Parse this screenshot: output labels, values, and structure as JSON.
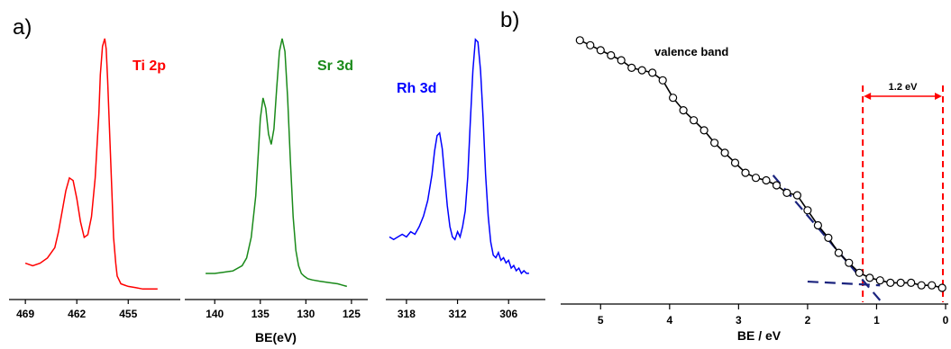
{
  "panel_a_label": "a)",
  "panel_b_label": "b)",
  "colors": {
    "ti": "#ff0000",
    "sr": "#1a8a1a",
    "rh": "#0000ff",
    "vb": "#000000",
    "fit": "#1a237e",
    "marker": "#ff0000"
  },
  "chart_data": [
    {
      "type": "line",
      "panel": "a",
      "xlabel": "",
      "reversed_x": true,
      "xlim": [
        470,
        450
      ],
      "ylim": [
        0,
        1
      ],
      "xticks": [
        469,
        462,
        455
      ],
      "series": [
        {
          "name": "Ti 2p",
          "x": [
            469,
            468,
            467,
            466,
            465,
            464.5,
            464,
            463.5,
            463,
            462.5,
            462,
            461.5,
            461,
            460.5,
            460,
            459.5,
            459,
            458.8,
            458.5,
            458.2,
            458,
            457.8,
            457.5,
            457.2,
            457,
            456.7,
            456.5,
            456,
            455.5,
            455,
            454,
            453,
            452,
            451
          ],
          "y": [
            0.12,
            0.11,
            0.12,
            0.14,
            0.18,
            0.24,
            0.32,
            0.4,
            0.45,
            0.44,
            0.37,
            0.28,
            0.22,
            0.23,
            0.3,
            0.45,
            0.7,
            0.85,
            0.96,
            0.99,
            0.95,
            0.83,
            0.6,
            0.38,
            0.22,
            0.12,
            0.07,
            0.04,
            0.035,
            0.03,
            0.025,
            0.02,
            0.02,
            0.02
          ]
        }
      ]
    },
    {
      "type": "line",
      "panel": "a",
      "xlabel": "BE(eV)",
      "reversed_x": true,
      "xlim": [
        142,
        124
      ],
      "ylim": [
        0,
        1
      ],
      "xticks": [
        140,
        135,
        130,
        125
      ],
      "series": [
        {
          "name": "Sr 3d",
          "x": [
            141,
            140,
            139,
            138,
            137,
            136.5,
            136,
            135.5,
            135.2,
            135,
            134.7,
            134.4,
            134.1,
            133.8,
            133.5,
            133.2,
            132.9,
            132.6,
            132.3,
            132,
            131.7,
            131.4,
            131.1,
            130.8,
            130.5,
            130.2,
            129.8,
            129.3,
            128.5,
            127.5,
            126.5,
            125.5
          ],
          "y": [
            0.08,
            0.08,
            0.085,
            0.09,
            0.11,
            0.14,
            0.22,
            0.38,
            0.56,
            0.68,
            0.76,
            0.72,
            0.62,
            0.58,
            0.64,
            0.8,
            0.94,
            0.99,
            0.94,
            0.76,
            0.52,
            0.3,
            0.17,
            0.11,
            0.08,
            0.07,
            0.06,
            0.055,
            0.05,
            0.045,
            0.04,
            0.03
          ]
        }
      ]
    },
    {
      "type": "line",
      "panel": "a",
      "xlabel": "",
      "reversed_x": true,
      "xlim": [
        320,
        302
      ],
      "ylim": [
        0,
        1
      ],
      "xticks": [
        318,
        312,
        306
      ],
      "series": [
        {
          "name": "Rh 3d",
          "x": [
            320,
            319.5,
            319,
            318.5,
            318,
            317.5,
            317,
            316.5,
            316,
            315.5,
            315,
            314.7,
            314.4,
            314.1,
            313.8,
            313.5,
            313.2,
            312.9,
            312.6,
            312.3,
            312,
            311.7,
            311.4,
            311.1,
            310.8,
            310.5,
            310.2,
            309.9,
            309.6,
            309.3,
            309,
            308.7,
            308.4,
            308.1,
            307.8,
            307.5,
            307.2,
            306.9,
            306.6,
            306.3,
            306,
            305.7,
            305.4,
            305.1,
            304.8,
            304.5,
            304.2,
            303.9,
            303.6
          ],
          "y": [
            0.22,
            0.21,
            0.22,
            0.23,
            0.22,
            0.24,
            0.23,
            0.26,
            0.3,
            0.36,
            0.46,
            0.55,
            0.61,
            0.62,
            0.56,
            0.45,
            0.34,
            0.26,
            0.22,
            0.21,
            0.24,
            0.22,
            0.26,
            0.32,
            0.45,
            0.66,
            0.86,
            0.98,
            0.97,
            0.86,
            0.68,
            0.46,
            0.3,
            0.2,
            0.15,
            0.14,
            0.16,
            0.13,
            0.14,
            0.12,
            0.13,
            0.1,
            0.11,
            0.09,
            0.1,
            0.08,
            0.09,
            0.08,
            0.08
          ]
        }
      ]
    },
    {
      "type": "scatter",
      "panel": "b",
      "xlabel": "BE / eV",
      "reversed_x": true,
      "xlim": [
        5.5,
        0
      ],
      "ylim": [
        0,
        1
      ],
      "xticks": [
        5,
        4,
        3,
        2,
        1,
        0
      ],
      "series": [
        {
          "name": "valence band",
          "x": [
            5.3,
            5.15,
            5.0,
            4.85,
            4.7,
            4.55,
            4.4,
            4.25,
            4.1,
            3.95,
            3.8,
            3.65,
            3.5,
            3.35,
            3.2,
            3.05,
            2.9,
            2.75,
            2.6,
            2.45,
            2.3,
            2.15,
            2.0,
            1.85,
            1.7,
            1.55,
            1.4,
            1.25,
            1.1,
            0.95,
            0.8,
            0.65,
            0.5,
            0.35,
            0.2,
            0.05
          ],
          "y": [
            0.99,
            0.97,
            0.95,
            0.93,
            0.91,
            0.88,
            0.87,
            0.86,
            0.83,
            0.76,
            0.71,
            0.67,
            0.63,
            0.58,
            0.54,
            0.5,
            0.46,
            0.44,
            0.43,
            0.41,
            0.38,
            0.37,
            0.31,
            0.25,
            0.2,
            0.14,
            0.1,
            0.06,
            0.04,
            0.03,
            0.02,
            0.02,
            0.02,
            0.01,
            0.01,
            0.0
          ]
        }
      ],
      "fit_lines": [
        {
          "x": [
            2.5,
            0.95
          ],
          "y": [
            0.45,
            -0.05
          ]
        },
        {
          "x": [
            2.0,
            0.95
          ],
          "y": [
            0.025,
            0.01
          ]
        }
      ],
      "annotations": {
        "series_label": "valence band",
        "gap_label": "1.2 eV",
        "gap_from": 1.2,
        "gap_to": 0
      }
    }
  ]
}
